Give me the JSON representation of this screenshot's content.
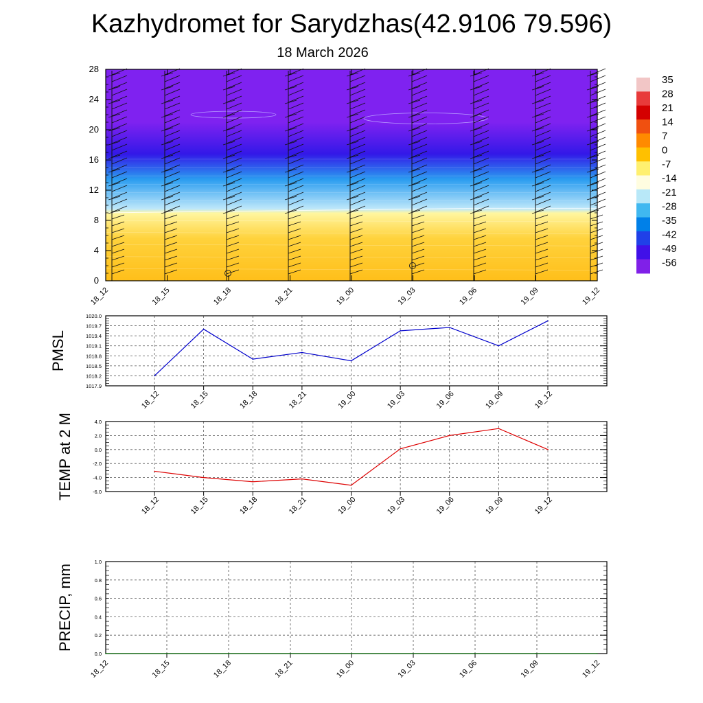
{
  "title": "Kazhydromet for Sarydzhas(42.9106 79.596)",
  "subtitle": "18 March 2026",
  "chart_data": [
    {
      "type": "heatmap",
      "name": "temperature-cross-section",
      "x_labels": [
        "18_12",
        "18_15",
        "18_18",
        "18_21",
        "19_00",
        "19_03",
        "19_06",
        "19_09",
        "19_12"
      ],
      "y_ticks": [
        0,
        4,
        8,
        12,
        16,
        20,
        24,
        28
      ],
      "ylim": [
        0,
        28
      ],
      "colorbar_labels": [
        "35",
        "28",
        "21",
        "14",
        "7",
        "0",
        "-7",
        "-14",
        "-21",
        "-28",
        "-35",
        "-42",
        "-49",
        "-56"
      ],
      "colorbar_colors": [
        "#f2c6c6",
        "#e83a3a",
        "#d40000",
        "#f05010",
        "#ff8a00",
        "#ffc000",
        "#fff070",
        "#fffde0",
        "#b8e8f8",
        "#40b8f0",
        "#0080e8",
        "#2040e8",
        "#4010e8",
        "#8020e8"
      ],
      "fill_colors": {
        "upper": "#7f22f0",
        "band": "#3318e8",
        "cold": "#2a9cf0",
        "light": "#bfe8fa",
        "warm_top": "#fff6a0",
        "warm": "#ffd23c",
        "warm_bottom": "#ffbf1a"
      },
      "freezing_level_km": [
        9.0,
        9.1,
        9.2,
        9.3,
        9.4,
        9.5,
        9.6,
        9.6,
        9.6
      ],
      "markers": [
        {
          "x": "18_18",
          "y_km": 1.0
        },
        {
          "x": "19_03",
          "y_km": 2.0
        }
      ]
    },
    {
      "type": "line",
      "name": "PMSL",
      "ylabel": "PMSL",
      "x": [
        "18_12",
        "18_15",
        "18_18",
        "18_21",
        "19_00",
        "19_03",
        "19_06",
        "19_09",
        "19_12"
      ],
      "values": [
        1018.2,
        1019.6,
        1018.7,
        1018.9,
        1018.65,
        1019.55,
        1019.65,
        1019.1,
        1019.85
      ],
      "ylim": [
        1017.9,
        1020.0
      ],
      "yticks": [
        "1020.0",
        "1019.7",
        "1019.4",
        "1019.1",
        "1018.8",
        "1018.5",
        "1018.2",
        "1017.9"
      ],
      "color": "#0000cc"
    },
    {
      "type": "line",
      "name": "TEMP at 2 M",
      "ylabel": "TEMP at 2 M",
      "x": [
        "18_12",
        "18_15",
        "18_18",
        "18_21",
        "19_00",
        "19_03",
        "19_06",
        "19_09",
        "19_12"
      ],
      "values": [
        -3.1,
        -4.0,
        -4.6,
        -4.2,
        -5.1,
        0.1,
        2.0,
        3.0,
        0.0
      ],
      "ylim": [
        -6.0,
        4.0
      ],
      "yticks": [
        "4.0",
        "2.0",
        "0.0",
        "-2.0",
        "-4.0",
        "-6.0"
      ],
      "color": "#dd0000"
    },
    {
      "type": "line",
      "name": "PRECIP, mm",
      "ylabel": "PRECIP, mm",
      "x": [
        "18_12",
        "18_15",
        "18_18",
        "18_21",
        "19_00",
        "19_03",
        "19_06",
        "19_09",
        "19_12"
      ],
      "values": [
        0,
        0,
        0,
        0,
        0,
        0,
        0,
        0,
        0
      ],
      "ylim": [
        0.0,
        1.0
      ],
      "yticks": [
        "1.0",
        "0.8",
        "0.6",
        "0.4",
        "0.2",
        "0.0"
      ],
      "color": "#006600"
    }
  ]
}
